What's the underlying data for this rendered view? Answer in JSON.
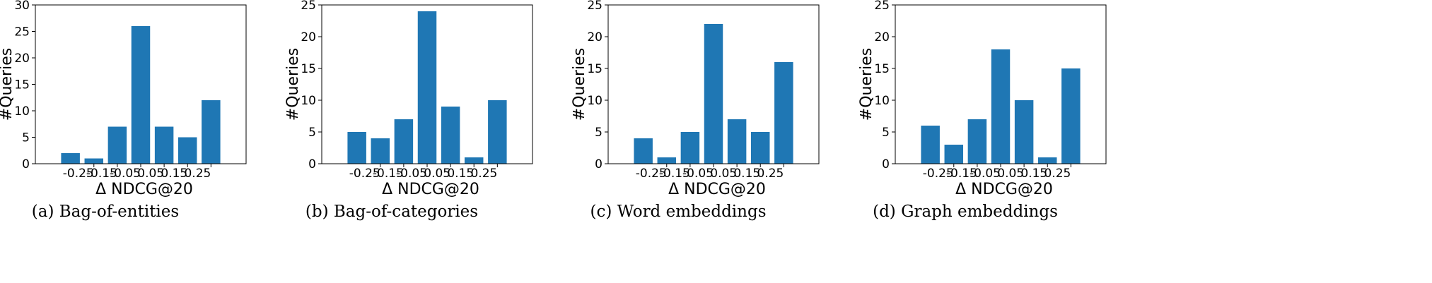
{
  "chart_data": [
    {
      "type": "bar",
      "caption": "(a)  Bag-of-entities",
      "xlabel": "Δ NDCG@20",
      "ylabel": "#Queries",
      "xtick_labels": [
        "-0.25",
        "-0.15",
        "-0.05",
        "0.05",
        "0.15",
        "0.25"
      ],
      "ylim": [
        0,
        30
      ],
      "yticks": [
        0,
        5,
        10,
        15,
        20,
        25,
        30
      ],
      "values": [
        2,
        1,
        7,
        26,
        7,
        5,
        12
      ],
      "color": "#1f77b4"
    },
    {
      "type": "bar",
      "caption": "(b)  Bag-of-categories",
      "xlabel": "Δ NDCG@20",
      "ylabel": "#Queries",
      "xtick_labels": [
        "-0.25",
        "-0.15",
        "-0.05",
        "0.05",
        "0.15",
        "0.25"
      ],
      "ylim": [
        0,
        25
      ],
      "yticks": [
        0,
        5,
        10,
        15,
        20,
        25
      ],
      "values": [
        5,
        4,
        7,
        24,
        9,
        1,
        10
      ],
      "color": "#1f77b4"
    },
    {
      "type": "bar",
      "caption": "(c)  Word embeddings",
      "xlabel": "Δ NDCG@20",
      "ylabel": "#Queries",
      "xtick_labels": [
        "-0.25",
        "-0.15",
        "-0.05",
        "0.05",
        "0.15",
        "0.25"
      ],
      "ylim": [
        0,
        25
      ],
      "yticks": [
        0,
        5,
        10,
        15,
        20,
        25
      ],
      "values": [
        4,
        1,
        5,
        22,
        7,
        5,
        16
      ],
      "color": "#1f77b4"
    },
    {
      "type": "bar",
      "caption": "(d)  Graph embeddings",
      "xlabel": "Δ NDCG@20",
      "ylabel": "#Queries",
      "xtick_labels": [
        "-0.25",
        "-0.15",
        "-0.05",
        "0.05",
        "0.15",
        "0.25"
      ],
      "ylim": [
        0,
        25
      ],
      "yticks": [
        0,
        5,
        10,
        15,
        20,
        25
      ],
      "values": [
        6,
        3,
        7,
        18,
        10,
        1,
        15
      ],
      "color": "#1f77b4"
    }
  ]
}
